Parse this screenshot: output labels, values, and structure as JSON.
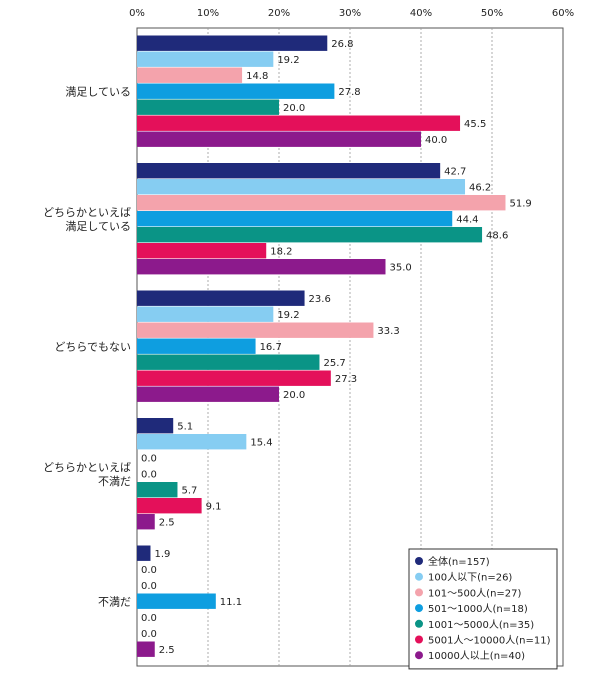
{
  "chart_data": {
    "type": "bar",
    "orientation": "horizontal",
    "xlim": [
      0,
      60
    ],
    "x_ticks": [
      "0%",
      "10%",
      "20%",
      "30%",
      "40%",
      "50%",
      "60%"
    ],
    "grid": true,
    "legend_position": "bottom-right",
    "categories": [
      [
        "満足している"
      ],
      [
        "どちらかといえば",
        "満足している"
      ],
      [
        "どちらでもない"
      ],
      [
        "どちらかといえば",
        "不満だ"
      ],
      [
        "不満だ"
      ]
    ],
    "series": [
      {
        "name": "全体(n=157)",
        "color": "#1f2a7a",
        "values": [
          26.8,
          42.7,
          23.6,
          5.1,
          1.9
        ],
        "labels": [
          "26.8",
          "42.7",
          "23.6",
          "5.1",
          "1.9"
        ]
      },
      {
        "name": "100人以下(n=26)",
        "color": "#86cdf2",
        "values": [
          19.2,
          46.2,
          19.2,
          15.4,
          0.0
        ],
        "labels": [
          "19.2",
          "46.2",
          "19.2",
          "15.4",
          "0.0"
        ]
      },
      {
        "name": "101〜500人(n=27)",
        "color": "#f4a3ac",
        "values": [
          14.8,
          51.9,
          33.3,
          0.0,
          0.0
        ],
        "labels": [
          "14.8",
          "51.9",
          "33.3",
          "0.0",
          "0.0"
        ]
      },
      {
        "name": "501〜1000人(n=18)",
        "color": "#0e9ee0",
        "values": [
          27.8,
          44.4,
          16.7,
          0.0,
          11.1
        ],
        "labels": [
          "27.8",
          "44.4",
          "16.7",
          "0.0",
          "11.1"
        ]
      },
      {
        "name": "1001〜5000人(n=35)",
        "color": "#0a9486",
        "values": [
          20.0,
          48.6,
          25.7,
          5.7,
          0.0
        ],
        "labels": [
          "20.0",
          "48.6",
          "25.7",
          "5.7",
          "0.0"
        ]
      },
      {
        "name": "5001人〜10000人(n=11)",
        "color": "#e4105a",
        "values": [
          45.5,
          18.2,
          27.3,
          9.1,
          0.0
        ],
        "labels": [
          "45.5",
          "18.2",
          "27.3",
          "9.1",
          "0.0"
        ]
      },
      {
        "name": "10000人以上(n=40)",
        "color": "#8c1a8c",
        "values": [
          40.0,
          35.0,
          20.0,
          2.5,
          2.5
        ],
        "labels": [
          "40.0",
          "35.0",
          "20.0",
          "2.5",
          "2.5"
        ]
      }
    ]
  }
}
